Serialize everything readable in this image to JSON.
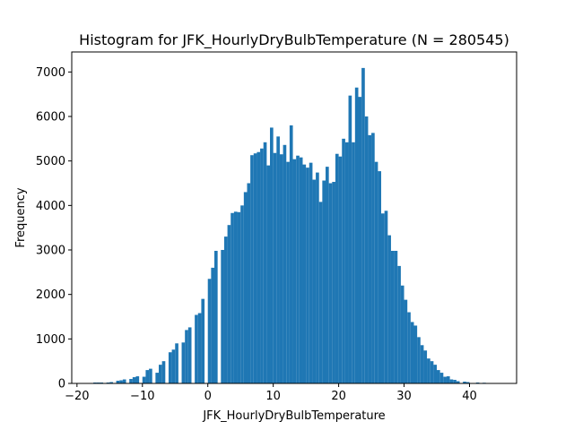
{
  "chart_data": {
    "type": "bar",
    "title": "Histogram for JFK_HourlyDryBulbTemperature (N = 280545)",
    "xlabel": "JFK_HourlyDryBulbTemperature",
    "ylabel": "Frequency",
    "xlim": [
      -20.8,
      47.2
    ],
    "ylim": [
      0,
      7450
    ],
    "x_ticks": [
      -20,
      -10,
      0,
      10,
      20,
      30,
      40
    ],
    "y_ticks": [
      0,
      1000,
      2000,
      3000,
      4000,
      5000,
      6000,
      7000
    ],
    "bar_width": 0.5,
    "bar_color": "#1f77b4",
    "bins": [
      {
        "x": -17.5,
        "y": 20
      },
      {
        "x": -17.0,
        "y": 20
      },
      {
        "x": -16.5,
        "y": 20
      },
      {
        "x": -15.5,
        "y": 20
      },
      {
        "x": -15.0,
        "y": 30
      },
      {
        "x": -14.0,
        "y": 60
      },
      {
        "x": -13.5,
        "y": 70
      },
      {
        "x": -13.0,
        "y": 90
      },
      {
        "x": -12.0,
        "y": 100
      },
      {
        "x": -11.5,
        "y": 140
      },
      {
        "x": -11.0,
        "y": 160
      },
      {
        "x": -10.0,
        "y": 150
      },
      {
        "x": -9.5,
        "y": 300
      },
      {
        "x": -9.0,
        "y": 330
      },
      {
        "x": -8.0,
        "y": 240
      },
      {
        "x": -7.5,
        "y": 420
      },
      {
        "x": -7.0,
        "y": 500
      },
      {
        "x": -6.0,
        "y": 700
      },
      {
        "x": -5.5,
        "y": 760
      },
      {
        "x": -5.0,
        "y": 900
      },
      {
        "x": -4.0,
        "y": 920
      },
      {
        "x": -3.5,
        "y": 1200
      },
      {
        "x": -3.0,
        "y": 1260
      },
      {
        "x": -2.0,
        "y": 1540
      },
      {
        "x": -1.5,
        "y": 1580
      },
      {
        "x": -1.0,
        "y": 1900
      },
      {
        "x": 0.0,
        "y": 2350
      },
      {
        "x": 0.5,
        "y": 2600
      },
      {
        "x": 1.0,
        "y": 2980
      },
      {
        "x": 2.0,
        "y": 3000
      },
      {
        "x": 2.5,
        "y": 3300
      },
      {
        "x": 3.0,
        "y": 3560
      },
      {
        "x": 3.5,
        "y": 3830
      },
      {
        "x": 4.0,
        "y": 3860
      },
      {
        "x": 4.5,
        "y": 3850
      },
      {
        "x": 5.0,
        "y": 4000
      },
      {
        "x": 5.5,
        "y": 4300
      },
      {
        "x": 6.0,
        "y": 4500
      },
      {
        "x": 6.5,
        "y": 5130
      },
      {
        "x": 7.0,
        "y": 5170
      },
      {
        "x": 7.5,
        "y": 5200
      },
      {
        "x": 8.0,
        "y": 5280
      },
      {
        "x": 8.5,
        "y": 5420
      },
      {
        "x": 9.0,
        "y": 4900
      },
      {
        "x": 9.5,
        "y": 5750
      },
      {
        "x": 10.0,
        "y": 5180
      },
      {
        "x": 10.5,
        "y": 5550
      },
      {
        "x": 11.0,
        "y": 5150
      },
      {
        "x": 11.5,
        "y": 5360
      },
      {
        "x": 12.0,
        "y": 4980
      },
      {
        "x": 12.5,
        "y": 5800
      },
      {
        "x": 13.0,
        "y": 5040
      },
      {
        "x": 13.5,
        "y": 5120
      },
      {
        "x": 14.0,
        "y": 5080
      },
      {
        "x": 14.5,
        "y": 4920
      },
      {
        "x": 15.0,
        "y": 4850
      },
      {
        "x": 15.5,
        "y": 4960
      },
      {
        "x": 16.0,
        "y": 4580
      },
      {
        "x": 16.5,
        "y": 4740
      },
      {
        "x": 17.0,
        "y": 4080
      },
      {
        "x": 17.5,
        "y": 4560
      },
      {
        "x": 18.0,
        "y": 4870
      },
      {
        "x": 18.5,
        "y": 4500
      },
      {
        "x": 19.0,
        "y": 4530
      },
      {
        "x": 19.5,
        "y": 5160
      },
      {
        "x": 20.0,
        "y": 5100
      },
      {
        "x": 20.5,
        "y": 5500
      },
      {
        "x": 21.0,
        "y": 5420
      },
      {
        "x": 21.5,
        "y": 6470
      },
      {
        "x": 22.0,
        "y": 5420
      },
      {
        "x": 22.5,
        "y": 6650
      },
      {
        "x": 23.0,
        "y": 6440
      },
      {
        "x": 23.5,
        "y": 7090
      },
      {
        "x": 24.0,
        "y": 6000
      },
      {
        "x": 24.5,
        "y": 5580
      },
      {
        "x": 25.0,
        "y": 5630
      },
      {
        "x": 25.5,
        "y": 4980
      },
      {
        "x": 26.0,
        "y": 4770
      },
      {
        "x": 26.5,
        "y": 3820
      },
      {
        "x": 27.0,
        "y": 3880
      },
      {
        "x": 27.5,
        "y": 3330
      },
      {
        "x": 28.0,
        "y": 2980
      },
      {
        "x": 28.5,
        "y": 2980
      },
      {
        "x": 29.0,
        "y": 2640
      },
      {
        "x": 29.5,
        "y": 2200
      },
      {
        "x": 30.0,
        "y": 1880
      },
      {
        "x": 30.5,
        "y": 1600
      },
      {
        "x": 31.0,
        "y": 1380
      },
      {
        "x": 31.5,
        "y": 1300
      },
      {
        "x": 32.0,
        "y": 1040
      },
      {
        "x": 32.5,
        "y": 860
      },
      {
        "x": 33.0,
        "y": 740
      },
      {
        "x": 33.5,
        "y": 560
      },
      {
        "x": 34.0,
        "y": 500
      },
      {
        "x": 34.5,
        "y": 420
      },
      {
        "x": 35.0,
        "y": 300
      },
      {
        "x": 35.5,
        "y": 240
      },
      {
        "x": 36.0,
        "y": 150
      },
      {
        "x": 36.5,
        "y": 160
      },
      {
        "x": 37.0,
        "y": 90
      },
      {
        "x": 37.5,
        "y": 80
      },
      {
        "x": 38.0,
        "y": 50
      },
      {
        "x": 39.0,
        "y": 40
      },
      {
        "x": 39.5,
        "y": 30
      },
      {
        "x": 41.0,
        "y": 20
      },
      {
        "x": 42.0,
        "y": 15
      },
      {
        "x": 43.0,
        "y": 10
      }
    ]
  }
}
